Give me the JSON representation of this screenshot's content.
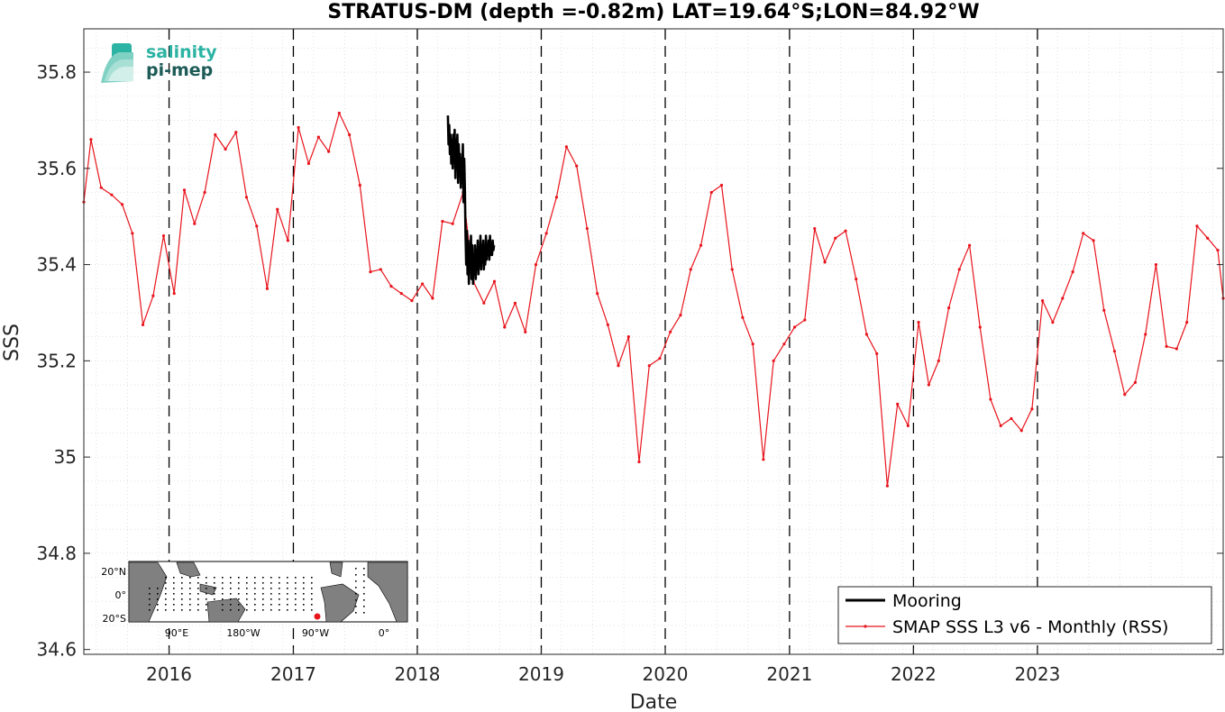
{
  "chart_data": {
    "type": "line",
    "title": "STRATUS-DM (depth =-0.82m) LAT=19.64°S;LON=84.92°W",
    "xlabel": "Date",
    "ylabel": "SSS",
    "xlim": [
      "2015-04-25",
      "2024-07-01"
    ],
    "ylim": [
      34.59,
      35.89
    ],
    "y_ticks": [
      34.6,
      34.8,
      35,
      35.2,
      35.4,
      35.6,
      35.8
    ],
    "y_tick_labels": [
      "34.6",
      "34.8",
      "35",
      "35.2",
      "35.4",
      "35.6",
      "35.8"
    ],
    "x_ticks": [
      "2016-01-01",
      "2017-01-01",
      "2018-01-01",
      "2019-01-01",
      "2020-01-01",
      "2021-01-01",
      "2022-01-01",
      "2023-01-01"
    ],
    "x_tick_labels": [
      "2016",
      "2017",
      "2018",
      "2019",
      "2020",
      "2021",
      "2022",
      "2023"
    ],
    "vlines": [
      "2016-01-01",
      "2017-01-01",
      "2018-01-01",
      "2019-01-01",
      "2020-01-01",
      "2021-01-01",
      "2022-01-01",
      "2023-01-01"
    ],
    "grid": true,
    "legend_position": "bottom-right",
    "series": [
      {
        "name": "Mooring",
        "color": "#000000",
        "x": [
          "2018-04-01",
          "2018-04-03",
          "2018-04-05",
          "2018-04-07",
          "2018-04-09",
          "2018-04-11",
          "2018-04-13",
          "2018-04-15",
          "2018-04-17",
          "2018-04-19",
          "2018-04-21",
          "2018-04-23",
          "2018-04-25",
          "2018-04-27",
          "2018-04-29",
          "2018-05-01",
          "2018-05-03",
          "2018-05-05",
          "2018-05-07",
          "2018-05-09",
          "2018-05-11",
          "2018-05-13",
          "2018-05-15",
          "2018-05-17",
          "2018-05-19",
          "2018-05-21",
          "2018-05-23",
          "2018-05-25",
          "2018-05-27",
          "2018-05-29",
          "2018-05-31",
          "2018-06-02",
          "2018-06-04",
          "2018-06-06",
          "2018-06-08",
          "2018-06-10",
          "2018-06-12",
          "2018-06-14",
          "2018-06-16",
          "2018-06-18",
          "2018-06-20",
          "2018-06-22",
          "2018-06-24",
          "2018-06-26",
          "2018-06-28",
          "2018-06-30",
          "2018-07-02",
          "2018-07-04",
          "2018-07-06",
          "2018-07-08",
          "2018-07-10",
          "2018-07-12",
          "2018-07-14",
          "2018-07-16",
          "2018-07-18",
          "2018-07-20",
          "2018-07-22",
          "2018-07-24",
          "2018-07-26",
          "2018-07-28",
          "2018-07-30",
          "2018-08-01",
          "2018-08-03",
          "2018-08-05",
          "2018-08-07",
          "2018-08-09",
          "2018-08-11",
          "2018-08-13",
          "2018-08-15"
        ],
        "values": [
          35.71,
          35.65,
          35.69,
          35.63,
          35.67,
          35.61,
          35.66,
          35.6,
          35.67,
          35.62,
          35.68,
          35.58,
          35.66,
          35.61,
          35.67,
          35.57,
          35.65,
          35.6,
          35.63,
          35.56,
          35.62,
          35.57,
          35.65,
          35.53,
          35.62,
          35.56,
          35.46,
          35.4,
          35.47,
          35.38,
          35.45,
          35.36,
          35.43,
          35.39,
          35.46,
          35.37,
          35.44,
          35.36,
          35.41,
          35.38,
          35.44,
          35.37,
          35.43,
          35.39,
          35.45,
          35.38,
          35.42,
          35.4,
          35.46,
          35.39,
          35.44,
          35.41,
          35.45,
          35.39,
          35.43,
          35.4,
          35.46,
          35.41,
          35.44,
          35.42,
          35.45,
          35.41,
          35.46,
          35.42,
          35.44,
          35.42,
          35.45,
          35.43,
          35.44
        ]
      },
      {
        "name": "SMAP SSS L3 v6 - Monthly (RSS)",
        "color": "#e8141c",
        "x": [
          "2015-04-25",
          "2015-05-16",
          "2015-06-15",
          "2015-07-16",
          "2015-08-16",
          "2015-09-15",
          "2015-10-16",
          "2015-11-15",
          "2015-12-16",
          "2016-01-16",
          "2016-02-15",
          "2016-03-16",
          "2016-04-15",
          "2016-05-16",
          "2016-06-15",
          "2016-07-16",
          "2016-08-16",
          "2016-09-15",
          "2016-10-16",
          "2016-11-15",
          "2016-12-16",
          "2017-01-16",
          "2017-02-15",
          "2017-03-16",
          "2017-04-15",
          "2017-05-16",
          "2017-06-15",
          "2017-07-16",
          "2017-08-16",
          "2017-09-15",
          "2017-10-16",
          "2017-11-15",
          "2017-12-16",
          "2018-01-16",
          "2018-02-15",
          "2018-03-16",
          "2018-04-15",
          "2018-05-16",
          "2018-06-15",
          "2018-07-16",
          "2018-08-16",
          "2018-09-15",
          "2018-10-16",
          "2018-11-15",
          "2018-12-16",
          "2019-01-16",
          "2019-02-15",
          "2019-03-16",
          "2019-04-15",
          "2019-05-16",
          "2019-06-15",
          "2019-07-16",
          "2019-08-16",
          "2019-09-15",
          "2019-10-16",
          "2019-11-15",
          "2019-12-16",
          "2020-01-16",
          "2020-02-15",
          "2020-03-16",
          "2020-04-15",
          "2020-05-16",
          "2020-06-15",
          "2020-07-16",
          "2020-08-16",
          "2020-09-15",
          "2020-10-16",
          "2020-11-15",
          "2020-12-16",
          "2021-01-16",
          "2021-02-15",
          "2021-03-16",
          "2021-04-15",
          "2021-05-16",
          "2021-06-15",
          "2021-07-16",
          "2021-08-16",
          "2021-09-15",
          "2021-10-16",
          "2021-11-15",
          "2021-12-16",
          "2022-01-16",
          "2022-02-15",
          "2022-03-16",
          "2022-04-15",
          "2022-05-16",
          "2022-06-15",
          "2022-07-16",
          "2022-08-16",
          "2022-09-15",
          "2022-10-16",
          "2022-11-15",
          "2022-12-16",
          "2023-01-16",
          "2023-02-15",
          "2023-03-16",
          "2023-04-15",
          "2023-05-16",
          "2023-06-15",
          "2023-07-16",
          "2023-08-16",
          "2023-09-15",
          "2023-10-16",
          "2023-11-15",
          "2023-12-16",
          "2024-01-16",
          "2024-02-15",
          "2024-03-16",
          "2024-04-15",
          "2024-05-16",
          "2024-06-15",
          "2024-07-01"
        ],
        "values": [
          35.53,
          35.66,
          35.56,
          35.545,
          35.525,
          35.465,
          35.275,
          35.335,
          35.46,
          35.34,
          35.555,
          35.485,
          35.55,
          35.67,
          35.64,
          35.675,
          35.54,
          35.48,
          35.35,
          35.515,
          35.45,
          35.685,
          35.61,
          35.665,
          35.635,
          35.715,
          35.67,
          35.565,
          35.385,
          35.39,
          35.355,
          35.34,
          35.325,
          35.36,
          35.33,
          35.49,
          35.485,
          35.55,
          35.365,
          35.32,
          35.365,
          35.27,
          35.32,
          35.26,
          35.4,
          35.465,
          35.54,
          35.645,
          35.605,
          35.475,
          35.34,
          35.275,
          35.19,
          35.25,
          34.99,
          35.19,
          35.205,
          35.26,
          35.295,
          35.39,
          35.44,
          35.55,
          35.565,
          35.39,
          35.29,
          35.235,
          34.995,
          35.2,
          35.235,
          35.27,
          35.285,
          35.475,
          35.405,
          35.455,
          35.47,
          35.37,
          35.255,
          35.215,
          34.94,
          35.11,
          35.065,
          35.28,
          35.15,
          35.2,
          35.31,
          35.39,
          35.44,
          35.27,
          35.12,
          35.065,
          35.08,
          35.055,
          35.1,
          35.325,
          35.28,
          35.33,
          35.385,
          35.465,
          35.45,
          35.305,
          35.22,
          35.13,
          35.155,
          35.255,
          35.4,
          35.23,
          35.225,
          35.28,
          35.48,
          35.455,
          35.43,
          35.33
        ]
      }
    ]
  },
  "inset_map": {
    "lat_labels": [
      "20°N",
      "0°",
      "20°S"
    ],
    "lon_labels": [
      "90°E",
      "180°W",
      "90°W",
      "0°"
    ],
    "ocean_color": "#ffffff",
    "land_color": "#808080",
    "station_color": "#e8141c"
  },
  "logo": {
    "line1": "salinity",
    "line2": "pi-mep"
  },
  "colors": {
    "grid": "#d9d9d9",
    "axis": "#262626",
    "vline": "#000000"
  }
}
